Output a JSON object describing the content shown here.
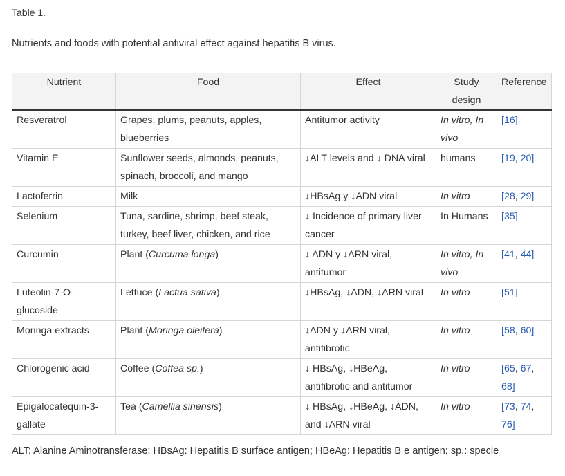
{
  "label": "Table 1.",
  "caption": "Nutrients and foods with potential antiviral effect against hepatitis B virus.",
  "headers": {
    "nutrient": "Nutrient",
    "food": "Food",
    "effect": "Effect",
    "design": "Study design",
    "reference": "Reference"
  },
  "rows": [
    {
      "nutrient": "Resveratrol",
      "food": [
        {
          "t": "Grapes, plums, peanuts, apples, blueberries"
        }
      ],
      "effect": "Antitumor activity",
      "design": [
        {
          "t": "In vitro, In vivo",
          "i": true
        }
      ],
      "refs": [
        {
          "t": "[16]",
          "l": true
        }
      ]
    },
    {
      "nutrient": "Vitamin E",
      "food": [
        {
          "t": "Sunflower seeds, almonds, peanuts, spinach, broccoli, and mango"
        }
      ],
      "effect": "↓ALT levels and ↓ DNA viral",
      "design": [
        {
          "t": "humans"
        }
      ],
      "refs": [
        {
          "t": "[",
          "l": true
        },
        {
          "t": "19",
          "l": true
        },
        {
          "t": ", ",
          "l": false
        },
        {
          "t": "20",
          "l": true
        },
        {
          "t": "]",
          "l": true
        }
      ]
    },
    {
      "nutrient": "Lactoferrin",
      "food": [
        {
          "t": "Milk"
        }
      ],
      "effect": "↓HBsAg y ↓ADN viral",
      "design": [
        {
          "t": "In vitro",
          "i": true
        }
      ],
      "refs": [
        {
          "t": "[",
          "l": true
        },
        {
          "t": "28",
          "l": true
        },
        {
          "t": ", ",
          "l": false
        },
        {
          "t": "29",
          "l": true
        },
        {
          "t": "]",
          "l": true
        }
      ]
    },
    {
      "nutrient": "Selenium",
      "food": [
        {
          "t": "Tuna, sardine, shrimp, beef steak, turkey, beef liver, chicken, and rice"
        }
      ],
      "effect": "↓ Incidence of primary liver cancer",
      "design": [
        {
          "t": "In Humans"
        }
      ],
      "refs": [
        {
          "t": "[35]",
          "l": true
        }
      ]
    },
    {
      "nutrient": "Curcumin",
      "food": [
        {
          "t": "Plant ("
        },
        {
          "t": "Curcuma longa",
          "i": true
        },
        {
          "t": ")"
        }
      ],
      "effect": "↓ ADN y ↓ARN viral, antitumor",
      "design": [
        {
          "t": "In vitro, In vivo",
          "i": true
        }
      ],
      "refs": [
        {
          "t": "[",
          "l": true
        },
        {
          "t": "41",
          "l": true
        },
        {
          "t": ", ",
          "l": false
        },
        {
          "t": "44",
          "l": true
        },
        {
          "t": "]",
          "l": true
        }
      ]
    },
    {
      "nutrient": "Luteolin-7-O-glucoside",
      "food": [
        {
          "t": "Lettuce ("
        },
        {
          "t": "Lactua sativa",
          "i": true
        },
        {
          "t": ")"
        }
      ],
      "effect": "↓HBsAg, ↓ADN, ↓ARN viral",
      "design": [
        {
          "t": "In vitro",
          "i": true
        }
      ],
      "refs": [
        {
          "t": "[51]",
          "l": true
        }
      ]
    },
    {
      "nutrient": "Moringa extracts",
      "food": [
        {
          "t": "Plant ("
        },
        {
          "t": "Moringa oleifera",
          "i": true
        },
        {
          "t": ")"
        }
      ],
      "effect": "↓ADN y ↓ARN viral, antifibrotic",
      "design": [
        {
          "t": "In vitro",
          "i": true
        }
      ],
      "refs": [
        {
          "t": "[",
          "l": true
        },
        {
          "t": "58",
          "l": true
        },
        {
          "t": ", ",
          "l": false
        },
        {
          "t": "60",
          "l": true
        },
        {
          "t": "]",
          "l": true
        }
      ]
    },
    {
      "nutrient": "Chlorogenic acid",
      "food": [
        {
          "t": "Coffee ("
        },
        {
          "t": "Coffea sp.",
          "i": true
        },
        {
          "t": ")"
        }
      ],
      "effect": "↓ HBsAg, ↓HBeAg, antifibrotic and antitumor",
      "design": [
        {
          "t": "In vitro",
          "i": true
        }
      ],
      "refs": [
        {
          "t": "[",
          "l": true
        },
        {
          "t": "65",
          "l": true
        },
        {
          "t": ", ",
          "l": false
        },
        {
          "t": "67",
          "l": true
        },
        {
          "t": ", ",
          "l": false
        },
        {
          "t": "68",
          "l": true
        },
        {
          "t": "]",
          "l": true
        }
      ]
    },
    {
      "nutrient": "Epigalocatequin-3-gallate",
      "food": [
        {
          "t": "Tea ("
        },
        {
          "t": "Camellia sinensis",
          "i": true
        },
        {
          "t": ")"
        }
      ],
      "effect": "↓ HBsAg, ↓HBeAg, ↓ADN, and ↓ARN viral",
      "design": [
        {
          "t": "In vitro",
          "i": true
        }
      ],
      "refs": [
        {
          "t": "[",
          "l": true
        },
        {
          "t": "73",
          "l": true
        },
        {
          "t": ", ",
          "l": false
        },
        {
          "t": "74",
          "l": true
        },
        {
          "t": ", ",
          "l": false
        },
        {
          "t": "76",
          "l": true
        },
        {
          "t": "]",
          "l": true
        }
      ]
    }
  ],
  "footnote": "ALT: Alanine Aminotransferase; HBsAg: Hepatitis B surface antigen; HBeAg: Hepatitis B e antigen; sp.: specie"
}
